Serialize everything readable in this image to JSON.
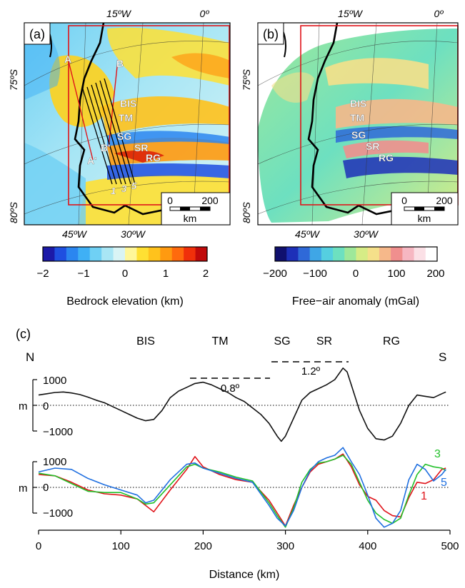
{
  "panel_a": {
    "label": "(a)",
    "lon_top": [
      "15ºW",
      "0º"
    ],
    "lon_bottom": [
      "45ºW",
      "30ºW"
    ],
    "lat_labels": [
      "75ºS",
      "80ºS"
    ],
    "features": [
      "BIS",
      "TM",
      "SG",
      "SR",
      "RG"
    ],
    "profile_points": [
      "A",
      "B",
      "A'",
      "B'"
    ],
    "line_numbers": [
      "1",
      "3",
      "5"
    ],
    "scalebar": {
      "zero": "0",
      "max": "200",
      "unit": "km"
    },
    "colorbar": {
      "ticks": [
        "−2",
        "−1",
        "0",
        "1",
        "2"
      ],
      "label": "Bedrock elevation (km)",
      "colors": [
        "#1c1aa8",
        "#1f4fe0",
        "#2b86f0",
        "#3fb0f5",
        "#6fd0f4",
        "#a8e6f5",
        "#d9f4f5",
        "#fff79a",
        "#ffe033",
        "#ffc21c",
        "#ff9a10",
        "#ff6a0d",
        "#f0300a",
        "#c00a0a"
      ]
    }
  },
  "panel_b": {
    "label": "(b)",
    "lon_top": [
      "15ºW",
      "0º"
    ],
    "lon_bottom": [
      "45ºW",
      "30ºW"
    ],
    "lat_labels": [
      "75ºS",
      "80ºS"
    ],
    "features": [
      "BIS",
      "TM",
      "SG",
      "SR",
      "RG"
    ],
    "scalebar": {
      "zero": "0",
      "max": "200",
      "unit": "km"
    },
    "colorbar": {
      "ticks": [
        "−200",
        "−100",
        "0",
        "100",
        "200"
      ],
      "label": "Free−air anomaly (mGal)",
      "colors": [
        "#10106e",
        "#1d2fb8",
        "#2f69d8",
        "#3fa6e6",
        "#55cfe0",
        "#6de0c0",
        "#9ee89a",
        "#d6ec86",
        "#f5e08a",
        "#f6b88a",
        "#f08f8e",
        "#f6b7c2",
        "#fbe0e6",
        "#ffffff"
      ]
    }
  },
  "panel_c": {
    "label": "(c)",
    "top_labels": [
      "BIS",
      "TM",
      "SG",
      "SR",
      "RG"
    ],
    "north": "N",
    "south": "S",
    "slope1": "0.8º",
    "slope2": "1.2º",
    "y_unit": "m",
    "y_ticks": [
      "1000",
      "0",
      "−1000"
    ],
    "x_ticks": [
      "0",
      "100",
      "200",
      "300",
      "400",
      "500"
    ],
    "xlabel": "Distance (km)",
    "line_labels": [
      "1",
      "3",
      "5"
    ],
    "colors": {
      "line1": "#e0141a",
      "line3": "#22c02a",
      "line5": "#1f6fe0",
      "main": "#111111"
    }
  },
  "chart_data": [
    {
      "type": "line",
      "xlabel": "Distance (km)",
      "ylabel": "m",
      "xlim": [
        0,
        500
      ],
      "ylim": [
        -1200,
        1600
      ],
      "series": [
        {
          "x": [
            0,
            10,
            20,
            30,
            40,
            50,
            60,
            70,
            80,
            90,
            100,
            110,
            120,
            130,
            140,
            150,
            160,
            170,
            180,
            190,
            200,
            210,
            220,
            230,
            240,
            250,
            260,
            270,
            280,
            290,
            295,
            300,
            310,
            320,
            330,
            340,
            350,
            360,
            370,
            375,
            380,
            390,
            400,
            410,
            420,
            430,
            440,
            450,
            460,
            470,
            480,
            490,
            495
          ],
          "values": [
            400,
            450,
            500,
            520,
            480,
            420,
            320,
            200,
            100,
            -50,
            -200,
            -350,
            -500,
            -600,
            -550,
            -200,
            300,
            550,
            700,
            850,
            900,
            800,
            650,
            500,
            300,
            150,
            -100,
            -350,
            -700,
            -1200,
            -1400,
            -1200,
            -500,
            200,
            500,
            650,
            800,
            1000,
            1450,
            1300,
            800,
            -200,
            -900,
            -1300,
            -1350,
            -1200,
            -700,
            0,
            400,
            350,
            300,
            450,
            520
          ]
        }
      ]
    },
    {
      "type": "line",
      "xlabel": "Distance (km)",
      "ylabel": "m",
      "xlim": [
        0,
        500
      ],
      "ylim": [
        -1300,
        1300
      ],
      "series": [
        {
          "name": "1",
          "x": [
            0,
            20,
            40,
            60,
            80,
            100,
            120,
            130,
            140,
            160,
            180,
            190,
            200,
            220,
            240,
            260,
            280,
            290,
            300,
            310,
            320,
            330,
            340,
            350,
            360,
            370,
            380,
            390,
            400,
            410,
            420,
            430,
            440,
            450,
            460,
            470,
            480,
            490,
            495
          ],
          "values": [
            500,
            450,
            200,
            -100,
            -250,
            -300,
            -450,
            -700,
            -950,
            -100,
            700,
            1200,
            800,
            500,
            300,
            200,
            -500,
            -1000,
            -1500,
            -700,
            0,
            600,
            900,
            1000,
            1100,
            1300,
            800,
            100,
            -350,
            -500,
            -900,
            -1100,
            -1150,
            -400,
            200,
            150,
            300,
            700,
            750
          ]
        },
        {
          "name": "3",
          "x": [
            0,
            20,
            40,
            60,
            80,
            100,
            120,
            130,
            140,
            160,
            180,
            190,
            200,
            220,
            240,
            260,
            280,
            290,
            300,
            310,
            320,
            330,
            340,
            350,
            360,
            370,
            380,
            390,
            400,
            410,
            420,
            430,
            440,
            450,
            460,
            470,
            480,
            490,
            495
          ],
          "values": [
            550,
            450,
            150,
            -150,
            -200,
            -200,
            -450,
            -650,
            -600,
            100,
            800,
            900,
            750,
            600,
            400,
            250,
            -600,
            -1100,
            -1550,
            -800,
            200,
            700,
            950,
            1000,
            1100,
            1250,
            900,
            200,
            -500,
            -1000,
            -1250,
            -1400,
            -1200,
            -300,
            500,
            900,
            800,
            750,
            650
          ]
        },
        {
          "name": "5",
          "x": [
            0,
            20,
            40,
            60,
            80,
            100,
            120,
            130,
            140,
            160,
            180,
            190,
            200,
            220,
            240,
            260,
            280,
            290,
            300,
            310,
            320,
            330,
            340,
            350,
            360,
            370,
            380,
            390,
            400,
            410,
            420,
            430,
            440,
            450,
            460,
            470,
            480,
            490,
            495
          ],
          "values": [
            600,
            750,
            700,
            350,
            100,
            -100,
            -300,
            -600,
            -500,
            300,
            900,
            950,
            750,
            550,
            350,
            200,
            -700,
            -1200,
            -1500,
            -900,
            0,
            650,
            1000,
            1150,
            1250,
            1550,
            1000,
            500,
            -300,
            -1200,
            -1550,
            -1400,
            -900,
            300,
            900,
            700,
            250,
            500,
            700
          ]
        }
      ]
    }
  ]
}
